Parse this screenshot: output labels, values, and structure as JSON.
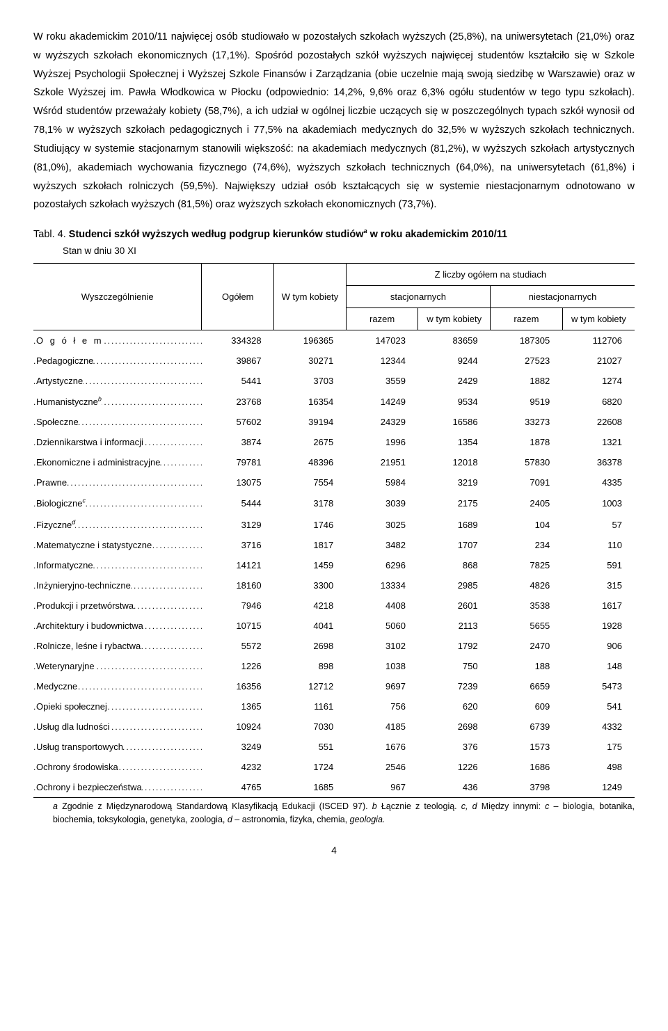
{
  "paragraph": "W roku akademickim 2010/11 najwięcej osób studiowało w pozostałych szkołach wyższych (25,8%), na uniwersytetach (21,0%) oraz w wyższych szkołach ekonomicznych (17,1%). Spośród pozostałych szkół wyższych najwięcej studentów kształciło się w Szkole Wyższej Psychologii Społecznej i Wyższej Szkole Finansów i Zarządzania (obie uczelnie mają swoją siedzibę w Warszawie) oraz w Szkole Wyższej im. Pawła Włodkowica w Płocku (odpowiednio: 14,2%, 9,6% oraz 6,3% ogółu studentów w tego typu szkołach). Wśród studentów przeważały kobiety (58,7%), a ich udział w ogólnej liczbie uczących się w poszczególnych typach szkół wynosił od 78,1% w wyższych szkołach pedagogicznych i 77,5% na akademiach medycznych do 32,5% w wyższych szkołach technicznych. Studiujący w systemie stacjonarnym stanowili większość: na akademiach medycznych (81,2%), w wyższych szkołach artystycznych (81,0%), akademiach wychowania fizycznego (74,6%), wyższych szkołach technicznych (64,0%), na uniwersytetach (61,8%) i wyższych szkołach rolniczych (59,5%). Największy udział osób kształcących się w systemie niestacjonarnym odnotowano w pozostałych szkołach wyższych (81,5%) oraz wyższych szkołach ekonomicznych (73,7%).",
  "table_title_label": "Tabl. 4. ",
  "table_title_bold": "Studenci szkół wyższych według podgrup kierunków studiów",
  "table_title_sup": "a",
  "table_title_rest": " w roku akademickim 2010/11",
  "subtitle": "Stan w dniu 30 XI",
  "headers": {
    "col1": "Wyszczególnienie",
    "col2": "Ogółem",
    "col3": "W tym kobiety",
    "group": "Z liczby ogółem na studiach",
    "sub1": "stacjonarnych",
    "sub2": "niestacjonarnych",
    "r": "razem",
    "wk": "w tym kobiety"
  },
  "rows": [
    {
      "name": "O g ó ł e m",
      "v": [
        "334328",
        "196365",
        "147023",
        "83659",
        "187305",
        "112706"
      ],
      "total": true
    },
    {
      "name": "Pedagogiczne",
      "v": [
        "39867",
        "30271",
        "12344",
        "9244",
        "27523",
        "21027"
      ]
    },
    {
      "name": "Artystyczne",
      "v": [
        "5441",
        "3703",
        "3559",
        "2429",
        "1882",
        "1274"
      ]
    },
    {
      "name": "Humanistyczne",
      "sup": "b",
      "v": [
        "23768",
        "16354",
        "14249",
        "9534",
        "9519",
        "6820"
      ]
    },
    {
      "name": "Społeczne",
      "v": [
        "57602",
        "39194",
        "24329",
        "16586",
        "33273",
        "22608"
      ]
    },
    {
      "name": "Dziennikarstwa i informacji",
      "v": [
        "3874",
        "2675",
        "1996",
        "1354",
        "1878",
        "1321"
      ]
    },
    {
      "name": "Ekonomiczne i administracyjne",
      "v": [
        "79781",
        "48396",
        "21951",
        "12018",
        "57830",
        "36378"
      ]
    },
    {
      "name": "Prawne",
      "v": [
        "13075",
        "7554",
        "5984",
        "3219",
        "7091",
        "4335"
      ]
    },
    {
      "name": "Biologiczne",
      "sup": "c",
      "v": [
        "5444",
        "3178",
        "3039",
        "2175",
        "2405",
        "1003"
      ]
    },
    {
      "name": "Fizyczne",
      "sup": "d",
      "v": [
        "3129",
        "1746",
        "3025",
        "1689",
        "104",
        "57"
      ]
    },
    {
      "name": "Matematyczne i statystyczne",
      "v": [
        "3716",
        "1817",
        "3482",
        "1707",
        "234",
        "110"
      ]
    },
    {
      "name": "Informatyczne",
      "v": [
        "14121",
        "1459",
        "6296",
        "868",
        "7825",
        "591"
      ]
    },
    {
      "name": "Inżynieryjno-techniczne",
      "v": [
        "18160",
        "3300",
        "13334",
        "2985",
        "4826",
        "315"
      ]
    },
    {
      "name": "Produkcji i przetwórstwa",
      "v": [
        "7946",
        "4218",
        "4408",
        "2601",
        "3538",
        "1617"
      ]
    },
    {
      "name": "Architektury i budownictwa",
      "v": [
        "10715",
        "4041",
        "5060",
        "2113",
        "5655",
        "1928"
      ]
    },
    {
      "name": "Rolnicze, leśne i rybactwa",
      "v": [
        "5572",
        "2698",
        "3102",
        "1792",
        "2470",
        "906"
      ]
    },
    {
      "name": "Weterynaryjne",
      "v": [
        "1226",
        "898",
        "1038",
        "750",
        "188",
        "148"
      ]
    },
    {
      "name": "Medyczne",
      "v": [
        "16356",
        "12712",
        "9697",
        "7239",
        "6659",
        "5473"
      ]
    },
    {
      "name": "Opieki społecznej",
      "v": [
        "1365",
        "1161",
        "756",
        "620",
        "609",
        "541"
      ]
    },
    {
      "name": "Usług dla ludności",
      "v": [
        "10924",
        "7030",
        "4185",
        "2698",
        "6739",
        "4332"
      ]
    },
    {
      "name": "Usług transportowych",
      "v": [
        "3249",
        "551",
        "1676",
        "376",
        "1573",
        "175"
      ]
    },
    {
      "name": "Ochrony środowiska",
      "v": [
        "4232",
        "1724",
        "2546",
        "1226",
        "1686",
        "498"
      ]
    },
    {
      "name": "Ochrony i bezpieczeństwa",
      "v": [
        "4765",
        "1685",
        "967",
        "436",
        "3798",
        "1249"
      ],
      "last": true
    }
  ],
  "footnote_parts": {
    "a_lbl": "a ",
    "a_txt": "Zgodnie z Międzynarodową Standardową Klasyfikacją Edukacji (ISCED 97). ",
    "b_lbl": "b ",
    "b_txt": "Łącznie z teologią. ",
    "cd_lbl": "c, d ",
    "cd_txt": "Między innymi: ",
    "c_lbl": "c ",
    "c_txt": "– biologia, botanika, biochemia, toksykologia, genetyka, zoologia, ",
    "d_lbl": "d ",
    "d_txt": "– astronomia, fizyka, chemia, ",
    "d_it": "geologia."
  },
  "pagenum": "4"
}
